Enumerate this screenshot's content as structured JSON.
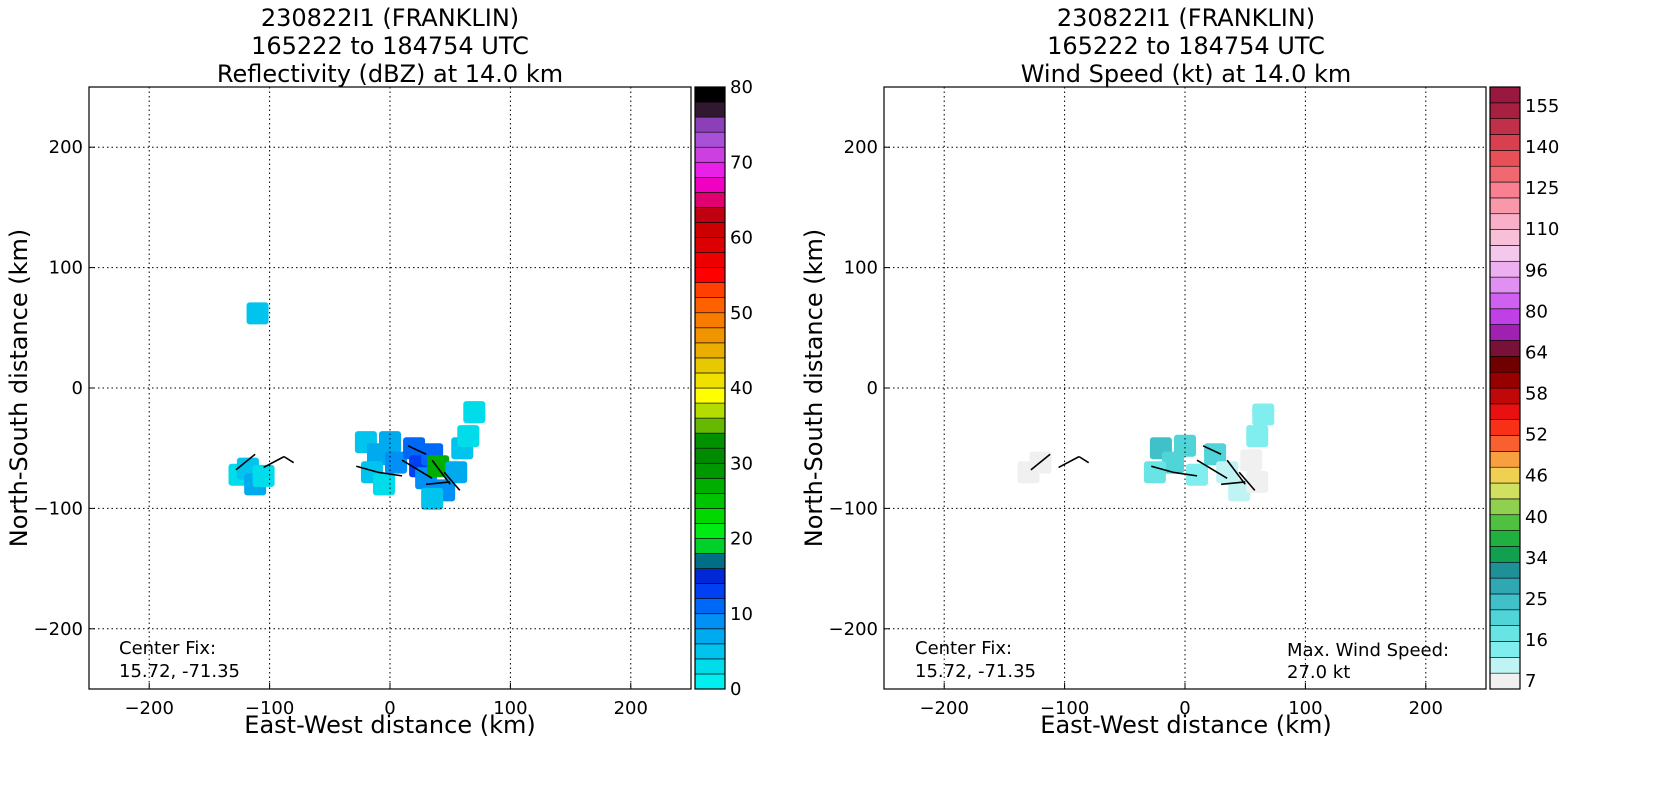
{
  "panels": [
    {
      "id": "refl",
      "title_lines": [
        "230822I1 (FRANKLIN)",
        "165222 to 184754 UTC",
        "Reflectivity (dBZ) at 14.0 km"
      ],
      "xlabel": "East-West distance (km)",
      "ylabel": "North-South distance (km)",
      "center_fix_label": "Center Fix:",
      "center_fix_value": "15.72, -71.35",
      "max_wind_label": "",
      "max_wind_value": "",
      "colorbar": {
        "ticks": [
          "0",
          "10",
          "20",
          "30",
          "40",
          "50",
          "60",
          "70",
          "80"
        ],
        "colors": [
          "#00f0f0",
          "#00dcea",
          "#00c4ee",
          "#00aaee",
          "#0090f6",
          "#0068f6",
          "#0040f2",
          "#0028d6",
          "#006e84",
          "#00d02a",
          "#00ea14",
          "#00d800",
          "#00c400",
          "#00ae00",
          "#009800",
          "#008a00",
          "#009000",
          "#66b800",
          "#b4dc00",
          "#ffff00",
          "#f0e000",
          "#e8c800",
          "#eaae00",
          "#f09400",
          "#f87c00",
          "#ff6000",
          "#ff4000",
          "#ff0000",
          "#ee0000",
          "#dc0000",
          "#cc0000",
          "#c00010",
          "#e00070",
          "#f000c0",
          "#e820e8",
          "#cc40e0",
          "#a850d8",
          "#8c40b8",
          "#301830",
          "#000000"
        ]
      }
    },
    {
      "id": "wind",
      "title_lines": [
        "230822I1 (FRANKLIN)",
        "165222 to 184754 UTC",
        "Wind Speed (kt) at 14.0 km"
      ],
      "xlabel": "East-West distance (km)",
      "ylabel": "North-South distance (km)",
      "center_fix_label": "Center Fix:",
      "center_fix_value": "15.72, -71.35",
      "max_wind_label": "Max. Wind Speed:",
      "max_wind_value": "27.0 kt",
      "colorbar": {
        "ticks": [
          "7",
          "16",
          "25",
          "34",
          "40",
          "46",
          "52",
          "58",
          "64",
          "80",
          "96",
          "110",
          "125",
          "140",
          "155"
        ],
        "colors": [
          "#f0f0f0",
          "#c0f4f4",
          "#80eeee",
          "#68e4e4",
          "#50d4d8",
          "#40c0c8",
          "#30a8b4",
          "#209098",
          "#10a050",
          "#20b040",
          "#50c040",
          "#90d050",
          "#d0e060",
          "#f0d050",
          "#f8a040",
          "#f86030",
          "#f83018",
          "#e81010",
          "#c00808",
          "#980000",
          "#700000",
          "#781038",
          "#a020b0",
          "#c040e8",
          "#d060f0",
          "#e090f0",
          "#ecb0f0",
          "#f4c8ec",
          "#f8c0d8",
          "#f8b0c8",
          "#f898a8",
          "#f88090",
          "#f06870",
          "#e85058",
          "#d84050",
          "#c03048",
          "#a82040",
          "#981840"
        ]
      }
    }
  ],
  "chart_data": [
    {
      "type": "heatmap",
      "title": "230822I1 (FRANKLIN) 165222 to 184754 UTC Reflectivity (dBZ) at 14.0 km",
      "xlabel": "East-West distance (km)",
      "ylabel": "North-South distance (km)",
      "xlim": [
        -250,
        250
      ],
      "ylim": [
        -250,
        250
      ],
      "xticks": [
        -200,
        -100,
        0,
        100,
        200
      ],
      "yticks": [
        -200,
        -100,
        0,
        100,
        200
      ],
      "grid": true,
      "colorbar_range": [
        0,
        80
      ],
      "colorbar_step": 2,
      "cells": [
        {
          "x": -110,
          "y": 62,
          "v": 4
        },
        {
          "x": -125,
          "y": -72,
          "v": 3
        },
        {
          "x": -118,
          "y": -67,
          "v": 5
        },
        {
          "x": -112,
          "y": -80,
          "v": 6
        },
        {
          "x": -105,
          "y": -73,
          "v": 2
        },
        {
          "x": -20,
          "y": -45,
          "v": 5
        },
        {
          "x": -10,
          "y": -55,
          "v": 7
        },
        {
          "x": 0,
          "y": -45,
          "v": 6
        },
        {
          "x": 5,
          "y": -62,
          "v": 8
        },
        {
          "x": -15,
          "y": -70,
          "v": 4
        },
        {
          "x": -5,
          "y": -80,
          "v": 3
        },
        {
          "x": 20,
          "y": -50,
          "v": 10
        },
        {
          "x": 25,
          "y": -65,
          "v": 12
        },
        {
          "x": 30,
          "y": -75,
          "v": 9
        },
        {
          "x": 35,
          "y": -55,
          "v": 11
        },
        {
          "x": 40,
          "y": -65,
          "v": 26
        },
        {
          "x": 45,
          "y": -85,
          "v": 8
        },
        {
          "x": 55,
          "y": -70,
          "v": 6
        },
        {
          "x": 60,
          "y": -50,
          "v": 4
        },
        {
          "x": 35,
          "y": -92,
          "v": 5
        },
        {
          "x": 70,
          "y": -20,
          "v": 3
        },
        {
          "x": 65,
          "y": -40,
          "v": 2
        }
      ]
    },
    {
      "type": "heatmap",
      "title": "230822I1 (FRANKLIN) 165222 to 184754 UTC Wind Speed (kt) at 14.0 km",
      "xlabel": "East-West distance (km)",
      "ylabel": "North-South distance (km)",
      "xlim": [
        -250,
        250
      ],
      "ylim": [
        -250,
        250
      ],
      "xticks": [
        -200,
        -100,
        0,
        100,
        200
      ],
      "yticks": [
        -200,
        -100,
        0,
        100,
        200
      ],
      "grid": true,
      "max_wind_kt": 27.0,
      "cells": [
        {
          "x": -130,
          "y": -70,
          "v": 5
        },
        {
          "x": -120,
          "y": -62,
          "v": 6
        },
        {
          "x": -20,
          "y": -50,
          "v": 27
        },
        {
          "x": -10,
          "y": -62,
          "v": 25
        },
        {
          "x": 0,
          "y": -48,
          "v": 26
        },
        {
          "x": -25,
          "y": -70,
          "v": 22
        },
        {
          "x": 10,
          "y": -72,
          "v": 18
        },
        {
          "x": 25,
          "y": -55,
          "v": 24
        },
        {
          "x": 35,
          "y": -70,
          "v": 14
        },
        {
          "x": 45,
          "y": -85,
          "v": 12
        },
        {
          "x": 55,
          "y": -60,
          "v": 10
        },
        {
          "x": 60,
          "y": -40,
          "v": 16
        },
        {
          "x": 65,
          "y": -22,
          "v": 18
        },
        {
          "x": 60,
          "y": -78,
          "v": 6
        }
      ]
    }
  ]
}
